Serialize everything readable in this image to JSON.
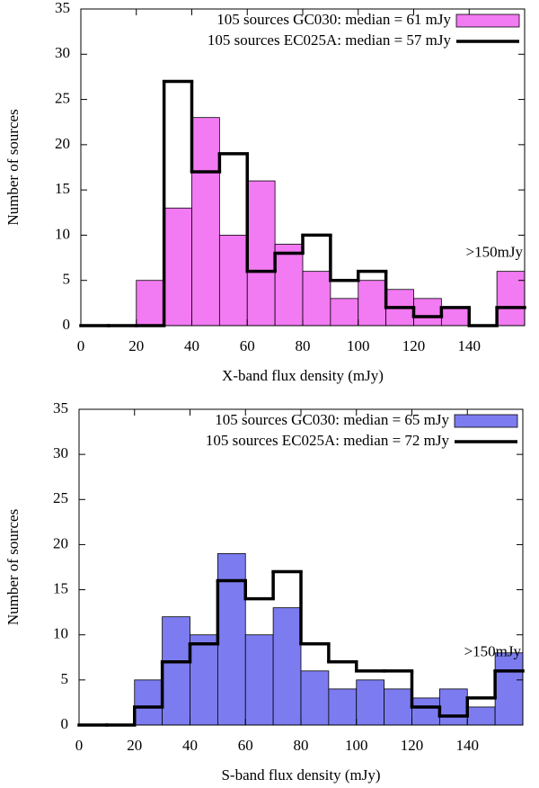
{
  "chart_data": [
    {
      "type": "histogram",
      "xlabel": "X-band flux density (mJy)",
      "ylabel": "Number of sources",
      "annotation": ">150mJy",
      "bins": [
        0,
        10,
        20,
        30,
        40,
        50,
        60,
        70,
        80,
        90,
        100,
        110,
        120,
        130,
        140,
        150,
        160
      ],
      "xlim": [
        0,
        160
      ],
      "xticks": [
        0,
        20,
        40,
        60,
        80,
        100,
        120,
        140
      ],
      "ylim": [
        0,
        35
      ],
      "yticks": [
        0,
        5,
        10,
        15,
        20,
        25,
        30,
        35
      ],
      "legend": "upper right",
      "series": [
        {
          "name": "105 sources GC030:  median = 61 mJy",
          "color": "#f27af2",
          "style": "fill",
          "values": [
            0,
            0,
            5,
            13,
            23,
            10,
            16,
            9,
            6,
            3,
            5,
            4,
            3,
            2,
            0,
            6
          ]
        },
        {
          "name": "105 sources EC025A: median = 57 mJy",
          "color": "#000000",
          "style": "step",
          "values": [
            0,
            0,
            0,
            27,
            17,
            19,
            6,
            8,
            10,
            5,
            6,
            2,
            1,
            2,
            0,
            2
          ]
        }
      ]
    },
    {
      "type": "histogram",
      "xlabel": "S-band flux density (mJy)",
      "ylabel": "Number of sources",
      "annotation": ">150mJy",
      "bins": [
        0,
        10,
        20,
        30,
        40,
        50,
        60,
        70,
        80,
        90,
        100,
        110,
        120,
        130,
        140,
        150,
        160
      ],
      "xlim": [
        0,
        160
      ],
      "xticks": [
        0,
        20,
        40,
        60,
        80,
        100,
        120,
        140
      ],
      "ylim": [
        0,
        35
      ],
      "yticks": [
        0,
        5,
        10,
        15,
        20,
        25,
        30,
        35
      ],
      "legend": "upper right",
      "series": [
        {
          "name": "105 sources GC030:  median = 65 mJy",
          "color": "#7c7cf0",
          "style": "fill",
          "values": [
            0,
            0,
            5,
            12,
            10,
            19,
            10,
            13,
            6,
            4,
            5,
            4,
            3,
            4,
            2,
            8
          ]
        },
        {
          "name": "105 sources EC025A: median = 72 mJy",
          "color": "#000000",
          "style": "step",
          "values": [
            0,
            0,
            2,
            7,
            9,
            16,
            14,
            17,
            9,
            7,
            6,
            6,
            2,
            1,
            3,
            6
          ]
        }
      ]
    }
  ]
}
